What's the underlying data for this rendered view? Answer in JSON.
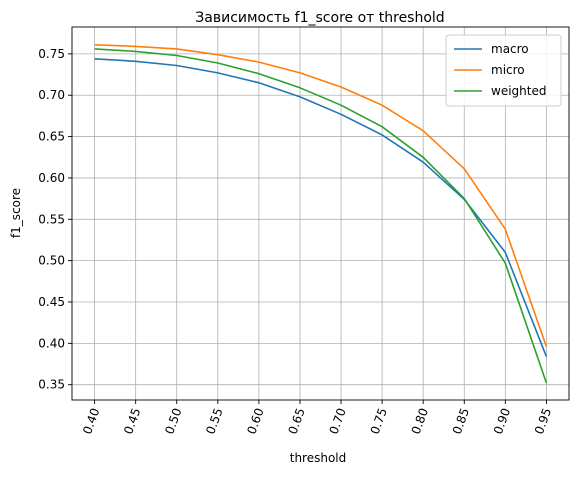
{
  "chart_data": {
    "type": "line",
    "title": "Зависимость f1_score от threshold",
    "xlabel": "threshold",
    "ylabel": "f1_score",
    "x": [
      0.4,
      0.45,
      0.5,
      0.55,
      0.6,
      0.65,
      0.7,
      0.75,
      0.8,
      0.85,
      0.9,
      0.95
    ],
    "x_tick_labels": [
      "0.40",
      "0.45",
      "0.50",
      "0.55",
      "0.60",
      "0.65",
      "0.70",
      "0.75",
      "0.80",
      "0.85",
      "0.90",
      "0.95"
    ],
    "y_ticks": [
      0.35,
      0.4,
      0.45,
      0.5,
      0.55,
      0.6,
      0.65,
      0.7,
      0.75
    ],
    "y_tick_labels": [
      "0.35",
      "0.40",
      "0.45",
      "0.50",
      "0.55",
      "0.60",
      "0.65",
      "0.70",
      "0.75"
    ],
    "xlim": [
      0.3725,
      0.9775
    ],
    "ylim": [
      0.3315,
      0.7825
    ],
    "grid": true,
    "x_tick_rotation": "rotated",
    "legend_position": "top-right",
    "series": [
      {
        "name": "macro",
        "color": "#1f77b4",
        "values": [
          0.744,
          0.741,
          0.736,
          0.727,
          0.715,
          0.698,
          0.677,
          0.652,
          0.619,
          0.574,
          0.51,
          0.384
        ]
      },
      {
        "name": "micro",
        "color": "#ff7f0e",
        "values": [
          0.761,
          0.759,
          0.756,
          0.749,
          0.74,
          0.727,
          0.71,
          0.688,
          0.657,
          0.611,
          0.538,
          0.396
        ]
      },
      {
        "name": "weighted",
        "color": "#2ca02c",
        "values": [
          0.756,
          0.753,
          0.748,
          0.739,
          0.726,
          0.709,
          0.688,
          0.662,
          0.625,
          0.575,
          0.497,
          0.352
        ]
      }
    ]
  }
}
